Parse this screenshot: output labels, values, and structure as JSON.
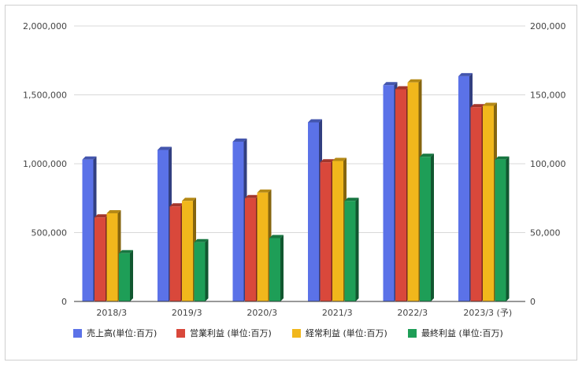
{
  "chart_data": {
    "type": "bar",
    "categories": [
      "2018/3",
      "2019/3",
      "2020/3",
      "2021/3",
      "2022/3",
      "2023/3 (予)"
    ],
    "series": [
      {
        "name": "売上高(単位:百万)",
        "axis": "left",
        "color": "#5b72e8",
        "values": [
          1030000,
          1100000,
          1160000,
          1300000,
          1570000,
          1635000
        ]
      },
      {
        "name": "営業利益 (単位:百万)",
        "axis": "right",
        "color": "#d9483b",
        "values": [
          61000,
          69000,
          75000,
          101000,
          154000,
          141000
        ]
      },
      {
        "name": "経常利益 (単位:百万)",
        "axis": "right",
        "color": "#f1b71c",
        "values": [
          64000,
          73000,
          79000,
          102000,
          159000,
          142000
        ]
      },
      {
        "name": "最終利益 (単位:百万)",
        "axis": "right",
        "color": "#1e9e57",
        "values": [
          35000,
          43000,
          46000,
          73000,
          105000,
          103000
        ]
      }
    ],
    "left_axis": {
      "ylim": [
        0,
        2000000
      ],
      "ticks": [
        "0",
        "500,000",
        "1,000,000",
        "1,500,000",
        "2,000,000"
      ]
    },
    "right_axis": {
      "ylim": [
        0,
        200000
      ],
      "ticks": [
        "0",
        "50,000",
        "100,000",
        "150,000",
        "200,000"
      ]
    },
    "grid": true,
    "legend": "bottom"
  }
}
